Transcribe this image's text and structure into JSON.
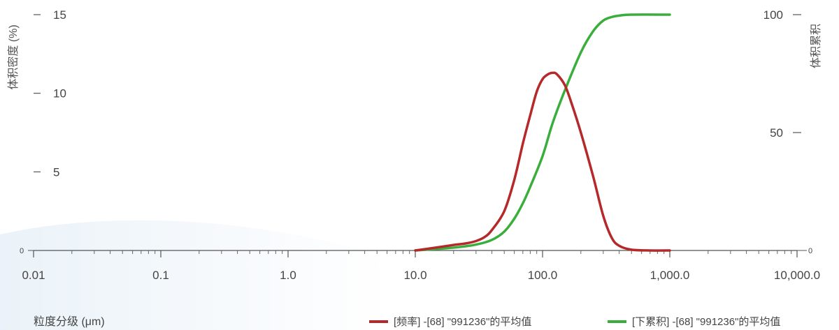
{
  "chart_data": {
    "type": "line",
    "x_scale": "log",
    "xlim": [
      0.01,
      10000
    ],
    "y_left_lim": [
      0,
      15
    ],
    "y_right_lim": [
      0,
      100
    ],
    "grid": false,
    "xlabel": "粒度分级 (μm)",
    "ylabel_left": "体积密度 (%)",
    "ylabel_right": "体积累积",
    "x_ticks": [
      {
        "value": 0.01,
        "label": "0.01"
      },
      {
        "value": 0.1,
        "label": "0.1"
      },
      {
        "value": 1,
        "label": "1.0"
      },
      {
        "value": 10,
        "label": "10.0"
      },
      {
        "value": 100,
        "label": "100.0"
      },
      {
        "value": 1000,
        "label": "1,000.0"
      },
      {
        "value": 10000,
        "label": "10,000.0"
      }
    ],
    "y_left_ticks": [
      {
        "value": 0,
        "label": "0"
      },
      {
        "value": 5,
        "label": "5"
      },
      {
        "value": 10,
        "label": "10"
      },
      {
        "value": 15,
        "label": "15"
      }
    ],
    "y_right_ticks": [
      {
        "value": 0,
        "label": "0"
      },
      {
        "value": 50,
        "label": "50"
      },
      {
        "value": 100,
        "label": "100"
      }
    ],
    "legend_position": "bottom-right",
    "series": [
      {
        "name": "[频率] -[68] \"991236\"的平均值",
        "axis": "left",
        "color": "#b5292b",
        "x": [
          10,
          15,
          20,
          25,
          30,
          35,
          40,
          50,
          60,
          70,
          80,
          90,
          100,
          110,
          120,
          130,
          150,
          170,
          200,
          250,
          300,
          350,
          400,
          500,
          700,
          1000
        ],
        "y": [
          0,
          0.2,
          0.35,
          0.45,
          0.6,
          0.85,
          1.3,
          2.5,
          4.5,
          6.8,
          8.6,
          10.1,
          10.9,
          11.2,
          11.3,
          11.2,
          10.5,
          9.3,
          7.5,
          4.7,
          2.2,
          0.8,
          0.3,
          0.05,
          0,
          0
        ]
      },
      {
        "name": "[下累积] -[68] \"991236\"的平均值",
        "axis": "right",
        "color": "#3aae3c",
        "x": [
          10,
          20,
          30,
          40,
          50,
          60,
          70,
          80,
          100,
          120,
          150,
          200,
          250,
          300,
          350,
          400,
          500,
          1000
        ],
        "y": [
          0,
          1.2,
          2.5,
          4.5,
          8,
          13.5,
          20,
          27,
          40,
          54,
          68,
          84,
          93,
          97.5,
          99,
          99.6,
          100,
          100
        ]
      }
    ]
  }
}
